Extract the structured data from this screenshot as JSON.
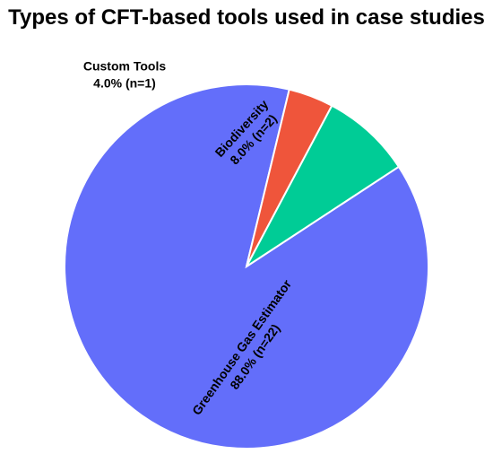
{
  "chart_data": {
    "type": "pie",
    "title": "Types of CFT-based tools used in case studies",
    "slices": [
      {
        "name": "Greenhouse Gas Estimator",
        "percent_label": "88.0% (n=22)",
        "count": 22,
        "percent": 88.0,
        "color": "#636efa"
      },
      {
        "name": "Custom Tools",
        "percent_label": "4.0% (n=1)",
        "count": 1,
        "percent": 4.0,
        "color": "#ef553b"
      },
      {
        "name": "Biodiversity",
        "percent_label": "8.0% (n=2)",
        "count": 2,
        "percent": 8.0,
        "color": "#00cc96"
      }
    ]
  }
}
